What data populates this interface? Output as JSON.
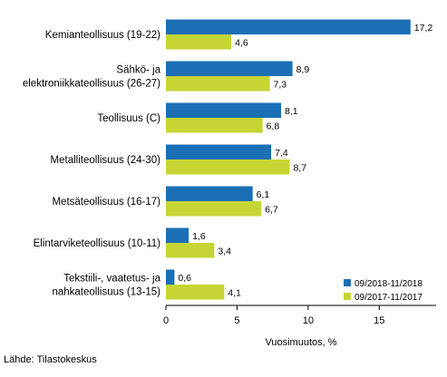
{
  "chart_data": {
    "type": "bar",
    "orientation": "horizontal",
    "categories": [
      [
        "Kemianteollisuus (19-22)"
      ],
      [
        "Sähkö- ja",
        "elektroniikkateollisuus (26-27)"
      ],
      [
        "Teollisuus (C)"
      ],
      [
        "Metalliteollisuus (24-30)"
      ],
      [
        "Metsäteollisuus (16-17)"
      ],
      [
        "Elintarviketeollisuus (10-11)"
      ],
      [
        "Tekstiili-, vaatetus- ja",
        "nahkateollisuus (13-15)"
      ]
    ],
    "series": [
      {
        "name": "09/2018-11/2018",
        "color": "#1a6fb5",
        "values": [
          17.2,
          8.9,
          8.1,
          7.4,
          6.1,
          1.6,
          0.6
        ],
        "labels": [
          "17,2",
          "8,9",
          "8,1",
          "7,4",
          "6,1",
          "1,6",
          "0,6"
        ]
      },
      {
        "name": "09/2017-11/2017",
        "color": "#c6d533",
        "values": [
          4.6,
          7.3,
          6.8,
          8.7,
          6.7,
          3.4,
          4.1
        ],
        "labels": [
          "4,6",
          "7,3",
          "6,8",
          "8,7",
          "6,7",
          "3,4",
          "4,1"
        ]
      }
    ],
    "xlim": [
      0,
      19
    ],
    "xticks": [
      0,
      5,
      10,
      15
    ],
    "xtick_labels": [
      "0",
      "5",
      "10",
      "15"
    ],
    "xlabel": "Vuosimuutos, %",
    "legend_position": "bottom-right",
    "grid": false
  },
  "source": "Lähde: Tilastokeskus"
}
